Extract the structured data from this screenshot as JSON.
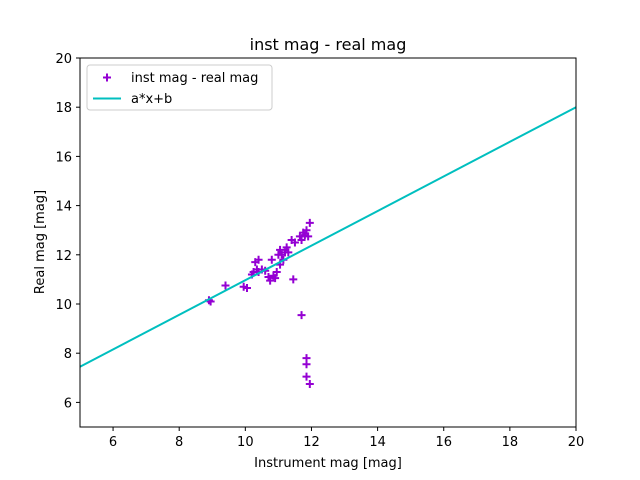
{
  "chart_data": {
    "type": "scatter",
    "title": "inst mag - real mag",
    "xlabel": "Instrument mag [mag]",
    "ylabel": "Real mag [mag]",
    "xlim": [
      5,
      20
    ],
    "ylim": [
      5,
      20
    ],
    "xticks": [
      "6",
      "8",
      "10",
      "12",
      "14",
      "16",
      "18",
      "20"
    ],
    "yticks": [
      "6",
      "8",
      "10",
      "12",
      "14",
      "16",
      "18",
      "20"
    ],
    "grid": false,
    "legend_placement": "top-left",
    "series": [
      {
        "name": "inst mag - real mag",
        "kind": "scatter",
        "marker": "plus",
        "color": "#9400d3",
        "points": [
          [
            8.9,
            10.15
          ],
          [
            8.95,
            10.1
          ],
          [
            9.4,
            10.75
          ],
          [
            9.95,
            10.7
          ],
          [
            10.05,
            10.65
          ],
          [
            10.2,
            11.2
          ],
          [
            10.25,
            11.3
          ],
          [
            10.3,
            11.7
          ],
          [
            10.35,
            11.4
          ],
          [
            10.4,
            11.8
          ],
          [
            10.4,
            11.3
          ],
          [
            10.5,
            11.4
          ],
          [
            10.6,
            11.35
          ],
          [
            10.7,
            11.1
          ],
          [
            10.75,
            10.95
          ],
          [
            10.8,
            11.8
          ],
          [
            10.85,
            11.15
          ],
          [
            10.9,
            11.05
          ],
          [
            10.95,
            11.3
          ],
          [
            11.0,
            12.0
          ],
          [
            11.05,
            12.2
          ],
          [
            11.05,
            11.6
          ],
          [
            11.1,
            12.0
          ],
          [
            11.15,
            11.8
          ],
          [
            11.2,
            12.1
          ],
          [
            11.25,
            12.3
          ],
          [
            11.3,
            12.1
          ],
          [
            11.4,
            12.6
          ],
          [
            11.5,
            12.5
          ],
          [
            11.45,
            11.0
          ],
          [
            11.65,
            12.75
          ],
          [
            11.7,
            12.6
          ],
          [
            11.75,
            12.9
          ],
          [
            11.8,
            12.8
          ],
          [
            11.85,
            13.0
          ],
          [
            11.9,
            12.75
          ],
          [
            11.95,
            13.3
          ],
          [
            11.7,
            9.55
          ],
          [
            11.85,
            7.8
          ],
          [
            11.85,
            7.55
          ],
          [
            11.85,
            7.05
          ],
          [
            11.95,
            6.75
          ]
        ]
      },
      {
        "name": "a*x+b",
        "kind": "line",
        "color": "#00bfbf",
        "points": [
          [
            5,
            7.45
          ],
          [
            20,
            18.0
          ]
        ]
      }
    ]
  }
}
